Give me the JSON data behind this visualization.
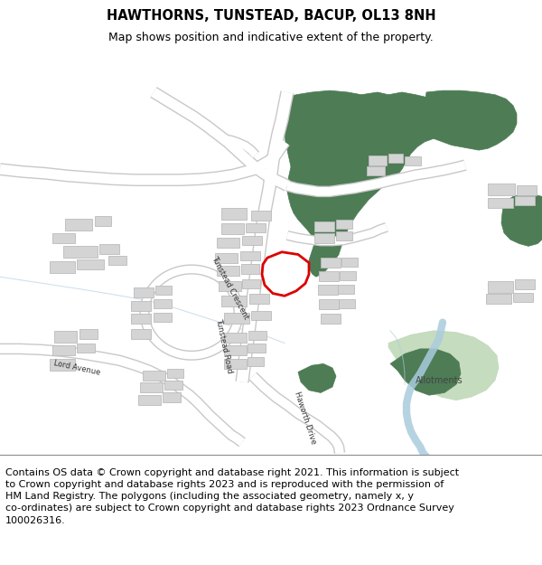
{
  "title": "HAWTHORNS, TUNSTEAD, BACUP, OL13 8NH",
  "subtitle": "Map shows position and indicative extent of the property.",
  "footer": "Contains OS data © Crown copyright and database right 2021. This information is subject\nto Crown copyright and database rights 2023 and is reproduced with the permission of\nHM Land Registry. The polygons (including the associated geometry, namely x, y\nco-ordinates) are subject to Crown copyright and database rights 2023 Ordnance Survey\n100026316.",
  "bg_color": "#ffffff",
  "map_bg": "#f8f8f8",
  "road_color": "#ffffff",
  "road_edge_color": "#c8c8c8",
  "building_color": "#d4d4d4",
  "building_edge_color": "#bbbbbb",
  "green_dark": "#4d7c55",
  "green_light": "#b8d4b0",
  "water_color": "#aaccdd",
  "plot_color": "#dd0000",
  "title_fontsize": 10.5,
  "subtitle_fontsize": 9,
  "footer_fontsize": 8,
  "figsize": [
    6.0,
    6.25
  ],
  "dpi": 100
}
